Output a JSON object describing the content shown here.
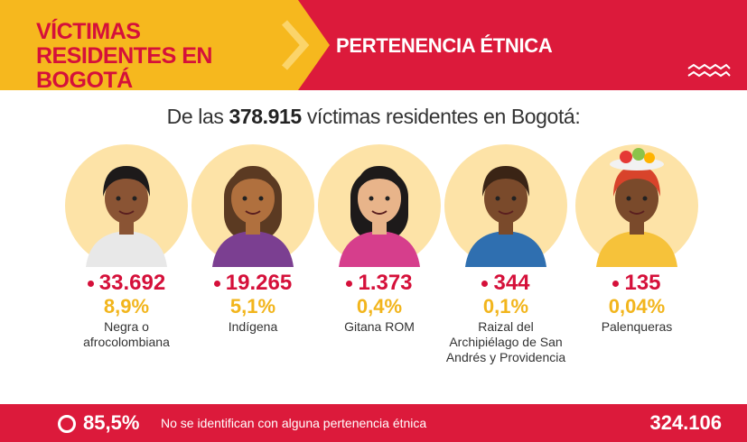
{
  "header": {
    "title": "VÍCTIMAS RESIDENTES EN BOGOTÁ",
    "subtitle": "PERTENENCIA ÉTNICA"
  },
  "intro": {
    "prefix": "De las",
    "total": "378.915",
    "suffix": "víctimas residentes en Bogotá:"
  },
  "groups": [
    {
      "count": "33.692",
      "percent": "8,9%",
      "label": "Negra o afrocolombiana"
    },
    {
      "count": "19.265",
      "percent": "5,1%",
      "label": "Indígena"
    },
    {
      "count": "1.373",
      "percent": "0,4%",
      "label": "Gitana ROM"
    },
    {
      "count": "344",
      "percent": "0,1%",
      "label": "Raizal del Archipiélago de San Andrés y Providencia"
    },
    {
      "count": "135",
      "percent": "0,04%",
      "label": "Palenqueras"
    }
  ],
  "footer": {
    "percent": "85,5%",
    "text": "No se identifican con alguna pertenencia étnica",
    "count": "324.106"
  }
}
